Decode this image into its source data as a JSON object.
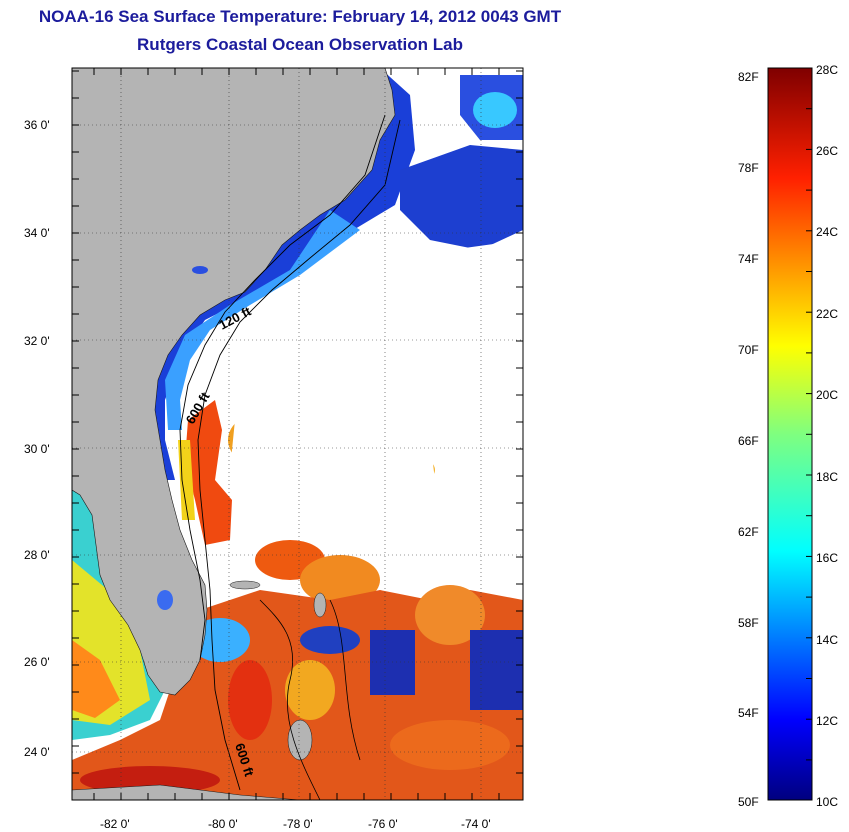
{
  "title": {
    "line1": "NOAA-16 Sea Surface Temperature:  February 14, 2012 0043 GMT",
    "line2": "Rutgers Coastal Ocean Observation Lab"
  },
  "map": {
    "lat_ticks": [
      "36 0'",
      "34 0'",
      "32 0'",
      "30 0'",
      "28 0'",
      "26 0'",
      "24 0'"
    ],
    "lon_ticks": [
      "-82 0'",
      "-80 0'",
      "-78 0'",
      "-76 0'",
      "-74 0'"
    ],
    "contour_labels": [
      "120 ft",
      "600 ft",
      "600 ft"
    ],
    "colors": {
      "land": "#b4b4b4",
      "cloud": "#ffffff"
    }
  },
  "colorbar": {
    "fahrenheit_labels": [
      "82F",
      "78F",
      "74F",
      "70F",
      "66F",
      "62F",
      "58F",
      "54F",
      "50F"
    ],
    "celsius_labels": [
      "28C",
      "26C",
      "24C",
      "22C",
      "20C",
      "18C",
      "16C",
      "14C",
      "12C",
      "10C"
    ],
    "range_c": [
      10,
      28
    ]
  }
}
